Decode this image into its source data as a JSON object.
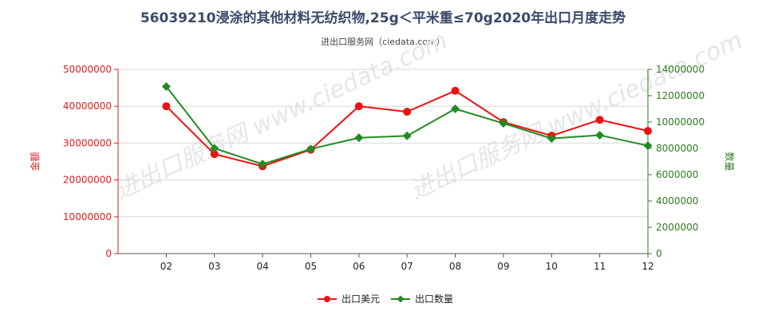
{
  "title": "56039210浸涂的其他材料无纺织物,25g＜平米重≤70g2020年出口月度走势",
  "subtitle": "进出口服务网（ciedata.com）",
  "watermark": "进出口服务网 www.ciedata.com",
  "colors": {
    "left_axis": "#e41a1c",
    "right_axis": "#2e7d1f",
    "amount": "#ee1111",
    "quantity": "#228b22",
    "grid": "#d8d8d8"
  },
  "chart_data": {
    "type": "line",
    "categories": [
      "02",
      "03",
      "04",
      "05",
      "06",
      "07",
      "08",
      "09",
      "10",
      "11",
      "12"
    ],
    "left_axis": {
      "label": "金额",
      "range": [
        0,
        50000000
      ],
      "ticks": [
        "0",
        "10000000",
        "20000000",
        "30000000",
        "40000000",
        "50000000"
      ]
    },
    "right_axis": {
      "label": "数量",
      "range": [
        0,
        14000000
      ],
      "ticks": [
        "0",
        "2000000",
        "4000000",
        "6000000",
        "8000000",
        "10000000",
        "12000000",
        "14000000"
      ]
    },
    "series": [
      {
        "name": "出口美元",
        "axis": "left",
        "marker": "circle",
        "values": [
          40000000,
          27000000,
          23700000,
          28200000,
          40000000,
          38500000,
          44200000,
          35700000,
          32000000,
          36300000,
          33300000
        ]
      },
      {
        "name": "出口数量",
        "axis": "right",
        "marker": "diamond",
        "values": [
          12700000,
          8000000,
          6800000,
          7950000,
          8800000,
          8950000,
          11000000,
          9900000,
          8750000,
          9000000,
          8200000
        ]
      }
    ],
    "grid": "horizontal",
    "legend_position": "bottom-center"
  }
}
